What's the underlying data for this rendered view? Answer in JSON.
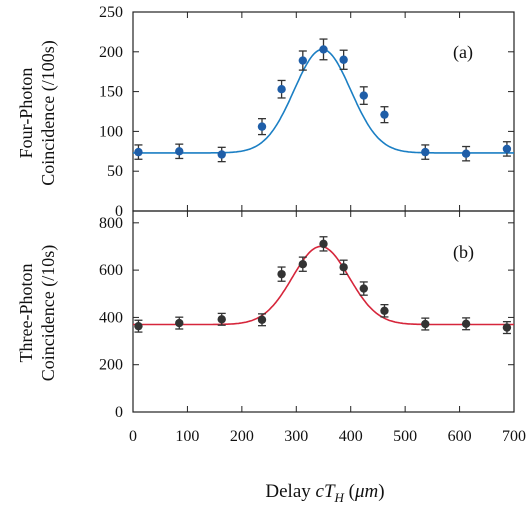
{
  "chart_data": [
    {
      "type": "scatter",
      "panel_label": "(a)",
      "ylabel_lines": [
        "Four-Photon",
        "Coincidence (/100s)"
      ],
      "xlim": [
        0,
        700
      ],
      "ylim": [
        0,
        250
      ],
      "yticks": [
        0,
        50,
        100,
        150,
        200,
        250
      ],
      "marker_color": "#1f5ea8",
      "fit_color": "#1b7fc4",
      "points": [
        {
          "x": 10,
          "y": 74,
          "err": 9
        },
        {
          "x": 85,
          "y": 75,
          "err": 9
        },
        {
          "x": 163,
          "y": 71,
          "err": 9
        },
        {
          "x": 237,
          "y": 106,
          "err": 10
        },
        {
          "x": 273,
          "y": 153,
          "err": 11
        },
        {
          "x": 312,
          "y": 189,
          "err": 12
        },
        {
          "x": 350,
          "y": 203,
          "err": 13
        },
        {
          "x": 387,
          "y": 190,
          "err": 12
        },
        {
          "x": 424,
          "y": 145,
          "err": 11
        },
        {
          "x": 462,
          "y": 121,
          "err": 10
        },
        {
          "x": 537,
          "y": 74,
          "err": 9
        },
        {
          "x": 612,
          "y": 72,
          "err": 9
        },
        {
          "x": 687,
          "y": 78,
          "err": 9
        }
      ],
      "fit": {
        "baseline": 73,
        "amplitude": 130,
        "center": 348,
        "sigma": 52
      }
    },
    {
      "type": "scatter",
      "panel_label": "(b)",
      "ylabel_lines": [
        "Three-Photon",
        "Coincidence (/10s)"
      ],
      "xlim": [
        0,
        700
      ],
      "ylim": [
        0,
        850
      ],
      "yticks": [
        0,
        200,
        400,
        600,
        800
      ],
      "marker_color": "#333333",
      "fit_color": "#d6263b",
      "points": [
        {
          "x": 10,
          "y": 363,
          "err": 25
        },
        {
          "x": 85,
          "y": 376,
          "err": 25
        },
        {
          "x": 163,
          "y": 392,
          "err": 25
        },
        {
          "x": 237,
          "y": 390,
          "err": 25
        },
        {
          "x": 273,
          "y": 583,
          "err": 30
        },
        {
          "x": 312,
          "y": 625,
          "err": 30
        },
        {
          "x": 350,
          "y": 711,
          "err": 30
        },
        {
          "x": 387,
          "y": 612,
          "err": 30
        },
        {
          "x": 424,
          "y": 522,
          "err": 28
        },
        {
          "x": 462,
          "y": 428,
          "err": 26
        },
        {
          "x": 537,
          "y": 372,
          "err": 25
        },
        {
          "x": 612,
          "y": 373,
          "err": 25
        },
        {
          "x": 687,
          "y": 357,
          "err": 25
        }
      ],
      "fit": {
        "baseline": 370,
        "amplitude": 330,
        "center": 345,
        "sigma": 52
      }
    }
  ],
  "shared_x": {
    "xticks": [
      0,
      100,
      200,
      300,
      400,
      500,
      600,
      700
    ],
    "xlabel_prefix": "Delay ",
    "xlabel_var": "cT",
    "xlabel_sub": "H",
    "xlabel_unit_open": " (",
    "xlabel_unit": "μm",
    "xlabel_unit_close": ")"
  }
}
